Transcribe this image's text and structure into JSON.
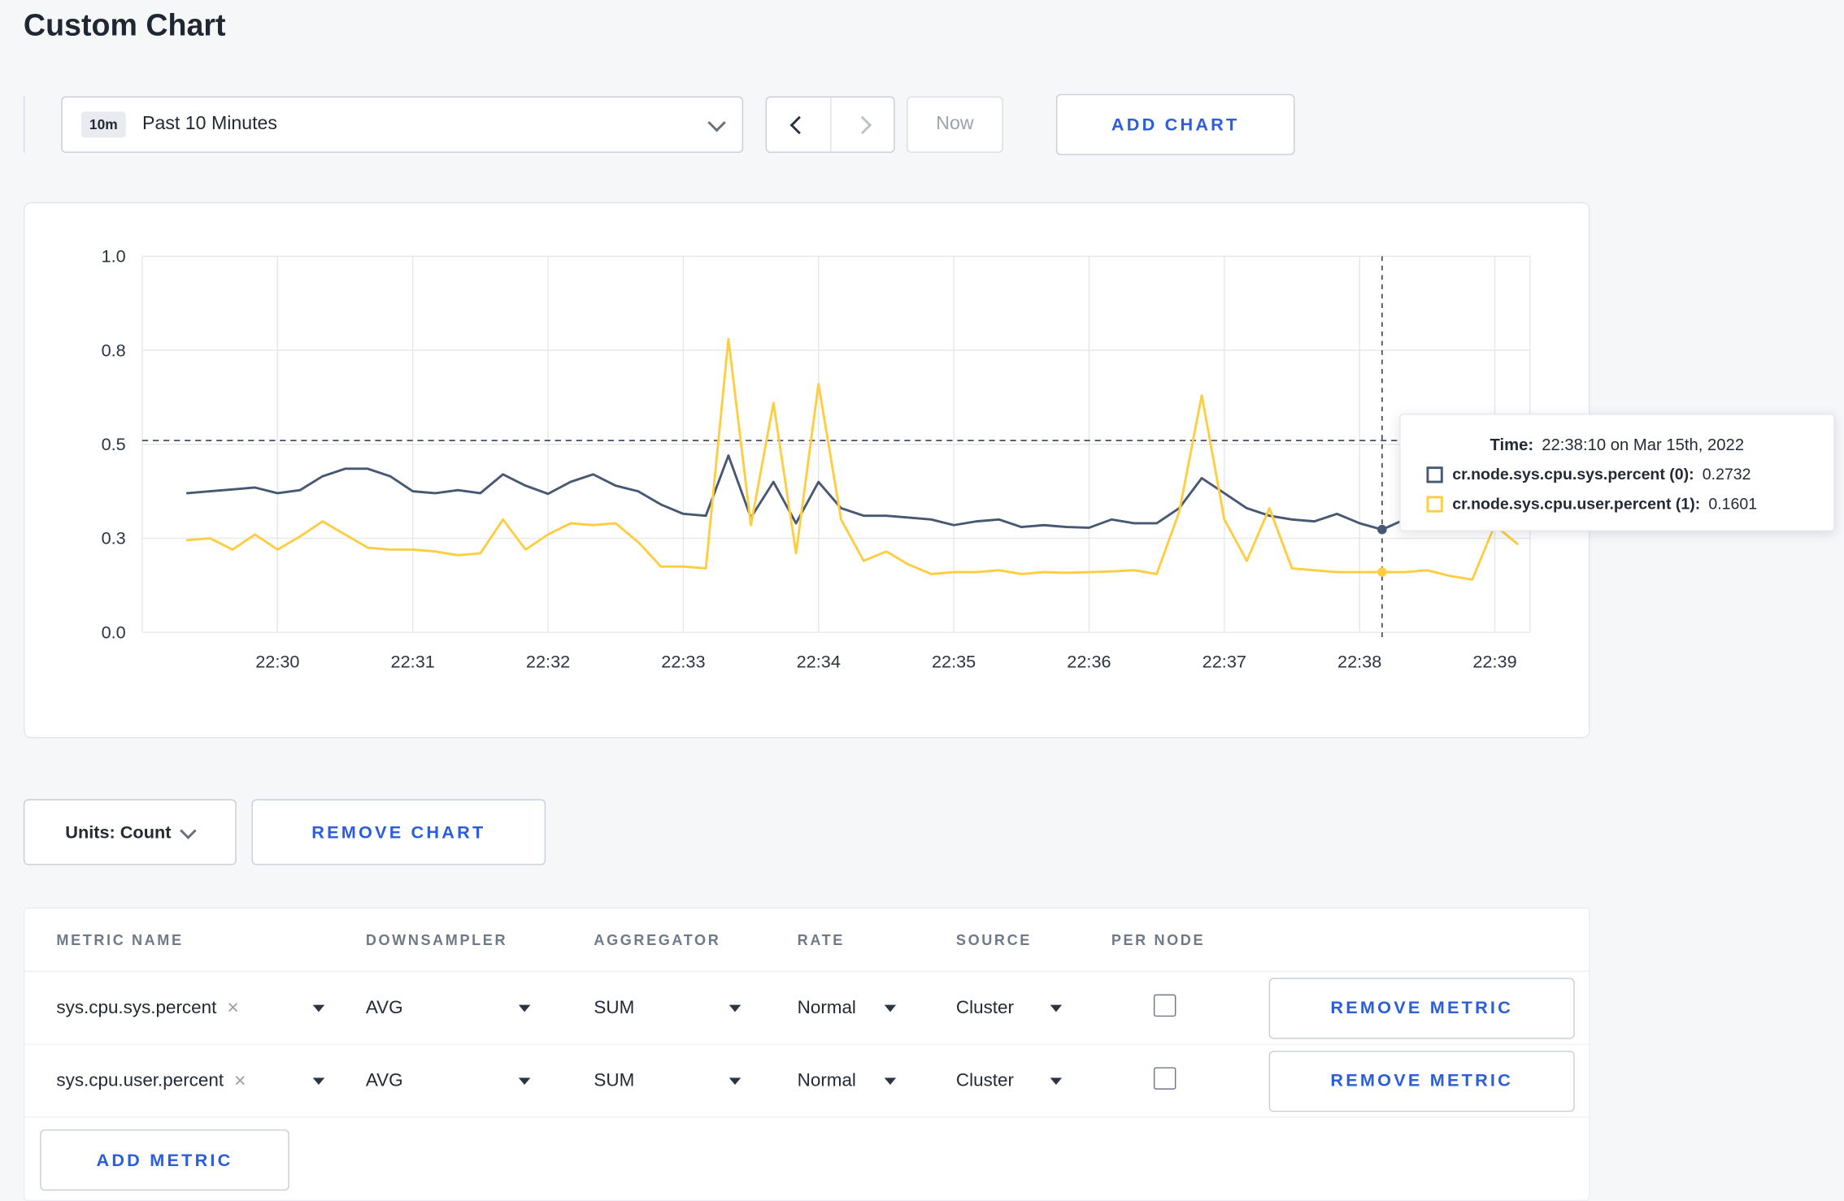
{
  "page": {
    "title": "Custom Chart"
  },
  "icons": {
    "close": "×"
  },
  "toolbar": {
    "range_badge": "10m",
    "range_label": "Past 10 Minutes",
    "now_label": "Now",
    "add_chart_label": "ADD CHART"
  },
  "chart_tooltip": {
    "time_label": "Time:",
    "time_value": "22:38:10 on Mar 15th, 2022",
    "series": [
      {
        "label": "cr.node.sys.cpu.sys.percent (0):",
        "value": "0.2732",
        "color": "#475872"
      },
      {
        "label": "cr.node.sys.cpu.user.percent (1):",
        "value": "0.1601",
        "color": "#ffcd40"
      }
    ]
  },
  "chart_actions": {
    "units_label": "Units: Count",
    "remove_chart_label": "REMOVE CHART"
  },
  "metrics_table": {
    "headers": [
      "METRIC NAME",
      "DOWNSAMPLER",
      "AGGREGATOR",
      "RATE",
      "SOURCE",
      "PER NODE"
    ],
    "rows": [
      {
        "metric_name": "sys.cpu.sys.percent",
        "downsampler": "AVG",
        "aggregator": "SUM",
        "rate": "Normal",
        "source": "Cluster",
        "per_node_checked": false,
        "remove_label": "REMOVE METRIC"
      },
      {
        "metric_name": "sys.cpu.user.percent",
        "downsampler": "AVG",
        "aggregator": "SUM",
        "rate": "Normal",
        "source": "Cluster",
        "per_node_checked": false,
        "remove_label": "REMOVE METRIC"
      }
    ],
    "add_metric_label": "ADD METRIC"
  },
  "chart_data": {
    "type": "line",
    "title": "",
    "xlabel": "",
    "ylabel": "",
    "grid": true,
    "legend_position": "tooltip",
    "x_axis": {
      "start_minute": 29.0,
      "end_minute": 39.26,
      "tick_minutes": [
        30,
        31,
        32,
        33,
        34,
        35,
        36,
        37,
        38,
        39
      ],
      "tick_labels": [
        "22:30",
        "22:31",
        "22:32",
        "22:33",
        "22:34",
        "22:35",
        "22:36",
        "22:37",
        "22:38",
        "22:39"
      ]
    },
    "y_axis": {
      "min": 0,
      "max": 1,
      "ticks": [
        {
          "label": "0.0",
          "value": 0
        },
        {
          "label": "0.3",
          "value": 0.25
        },
        {
          "label": "0.5",
          "value": 0.5
        },
        {
          "label": "0.8",
          "value": 0.75
        },
        {
          "label": "1.0",
          "value": 1
        }
      ]
    },
    "sample_start_minute": 29.3333,
    "sample_step_minute": 0.166667,
    "series": [
      {
        "name": "cr.node.sys.cpu.sys.percent",
        "color": "#475872",
        "values": [
          0.37,
          0.375,
          0.38,
          0.385,
          0.37,
          0.378,
          0.415,
          0.435,
          0.435,
          0.415,
          0.375,
          0.37,
          0.378,
          0.37,
          0.42,
          0.39,
          0.368,
          0.4,
          0.42,
          0.39,
          0.375,
          0.34,
          0.315,
          0.31,
          0.47,
          0.305,
          0.4,
          0.29,
          0.4,
          0.33,
          0.31,
          0.31,
          0.305,
          0.3,
          0.285,
          0.295,
          0.3,
          0.28,
          0.285,
          0.28,
          0.278,
          0.3,
          0.29,
          0.29,
          0.33,
          0.41,
          0.37,
          0.33,
          0.31,
          0.3,
          0.295,
          0.315,
          0.29,
          0.2732,
          0.3,
          0.315,
          0.3,
          0.295,
          0.315,
          0.3
        ]
      },
      {
        "name": "cr.node.sys.cpu.user.percent",
        "color": "#ffcd40",
        "values": [
          0.245,
          0.25,
          0.22,
          0.26,
          0.22,
          0.255,
          0.295,
          0.26,
          0.225,
          0.22,
          0.22,
          0.215,
          0.205,
          0.21,
          0.3,
          0.22,
          0.26,
          0.29,
          0.285,
          0.29,
          0.24,
          0.175,
          0.175,
          0.17,
          0.78,
          0.285,
          0.61,
          0.21,
          0.66,
          0.3,
          0.19,
          0.215,
          0.18,
          0.155,
          0.16,
          0.16,
          0.165,
          0.155,
          0.16,
          0.158,
          0.16,
          0.162,
          0.165,
          0.155,
          0.32,
          0.63,
          0.3,
          0.19,
          0.33,
          0.17,
          0.165,
          0.16,
          0.16,
          0.1601,
          0.16,
          0.165,
          0.15,
          0.14,
          0.285,
          0.235
        ]
      }
    ],
    "threshold_line": {
      "value": 0.51
    },
    "crosshair": {
      "minute": 38.1667,
      "time": "22:38:10",
      "points": [
        {
          "series": 0,
          "value": 0.2732
        },
        {
          "series": 1,
          "value": 0.1601
        }
      ]
    }
  }
}
